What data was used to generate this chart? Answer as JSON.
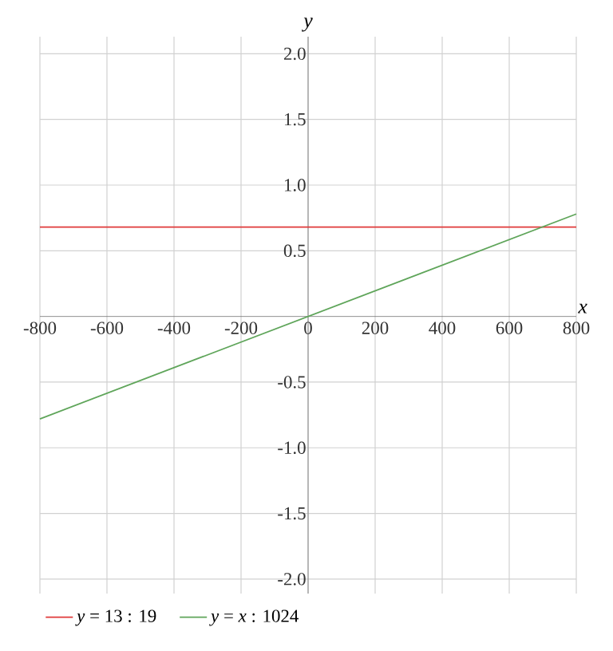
{
  "chart_data": {
    "type": "line",
    "xlabel": "x",
    "ylabel": "y",
    "x": [
      -800,
      800
    ],
    "series": [
      {
        "name": "*y* = 13 : 19",
        "color": "#e03a3a",
        "values": [
          0.68,
          0.68
        ]
      },
      {
        "name": "*y* = *x* : 1024",
        "color": "#5fa55a",
        "values": [
          -0.78,
          0.78
        ]
      }
    ],
    "xlim": [
      -800,
      800
    ],
    "ylim": [
      -2.11,
      2.13
    ],
    "xticks": [
      -800,
      -600,
      -400,
      -200,
      0,
      200,
      400,
      600,
      800
    ],
    "yticks": [
      {
        "value": -2,
        "label": "-2.0"
      },
      {
        "value": -1.5,
        "label": "-1.5"
      },
      {
        "value": -1,
        "label": "-1.0"
      },
      {
        "value": -0.5,
        "label": "-0.5"
      },
      {
        "value": 0.5,
        "label": "0.5"
      },
      {
        "value": 1,
        "label": "1.0"
      },
      {
        "value": 1.5,
        "label": "1.5"
      },
      {
        "value": 2,
        "label": "2.0"
      }
    ],
    "grid": true,
    "legend": "bottom",
    "marker": "none",
    "line_style": "solid"
  }
}
